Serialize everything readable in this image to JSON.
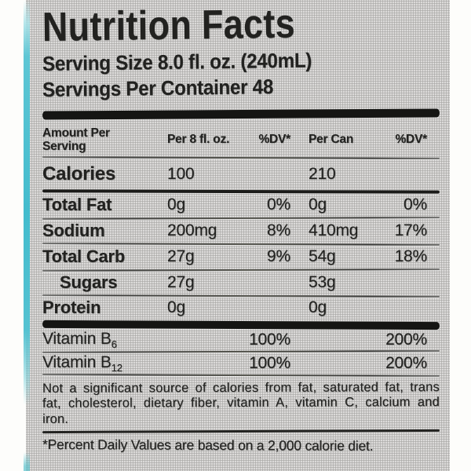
{
  "colors": {
    "label_background": "#c9c8c6",
    "ink": "#222220",
    "accent_strip": "#4fc0d0"
  },
  "label": {
    "title": "Nutrition Facts",
    "serving_size": "Serving Size 8.0 fl. oz. (240mL)",
    "servings_per_container": "Servings Per Container 48",
    "header": {
      "amount_line1": "Amount Per",
      "amount_line2": "Serving",
      "col_per_serving": "Per 8 fl. oz.",
      "col_dv1": "%DV*",
      "col_per_can": "Per Can",
      "col_dv2": "%DV*"
    },
    "rows": [
      {
        "name": "Calories",
        "per_serving": "100",
        "dv1": "",
        "per_can": "210",
        "dv2": ""
      },
      {
        "name": "Total Fat",
        "per_serving": "0g",
        "dv1": "0%",
        "per_can": "0g",
        "dv2": "0%"
      },
      {
        "name": "Sodium",
        "per_serving": "200mg",
        "dv1": "8%",
        "per_can": "410mg",
        "dv2": "17%"
      },
      {
        "name": "Total Carb",
        "per_serving": "27g",
        "dv1": "9%",
        "per_can": "54g",
        "dv2": "18%"
      },
      {
        "name": "Sugars",
        "per_serving": "27g",
        "dv1": "",
        "per_can": "53g",
        "dv2": ""
      },
      {
        "name": "Protein",
        "per_serving": "0g",
        "dv1": "",
        "per_can": "0g",
        "dv2": ""
      }
    ],
    "vitamins": [
      {
        "name": "Vitamin B",
        "subscript": "6",
        "per_serving_dv": "100%",
        "per_can_dv": "200%"
      },
      {
        "name": "Vitamin B",
        "subscript": "12",
        "per_serving_dv": "100%",
        "per_can_dv": "200%"
      }
    ],
    "footnote": "Not a significant source of calories from fat, saturated fat, trans fat, cholesterol, dietary fiber, vitamin A, vitamin C, calcium and iron.",
    "dv_note": "*Percent Daily Values are based on a 2,000 calorie diet."
  }
}
